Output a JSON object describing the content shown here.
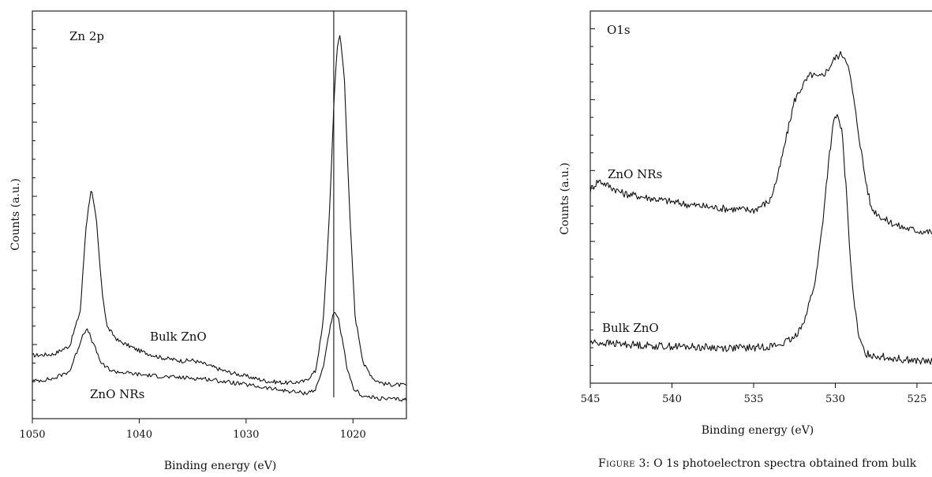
{
  "chart_data": [
    {
      "type": "line",
      "panel_label": "Zn 2p",
      "xlabel": "Binding energy (eV)",
      "ylabel": "Counts (a.u.)",
      "xlim": [
        1050,
        1015
      ],
      "x_reversed": true,
      "xticks": [
        1050,
        1040,
        1030,
        1020
      ],
      "ylim": [
        0,
        1.2
      ],
      "reference_line_x": 1021.8,
      "series": [
        {
          "name": "Bulk ZnO",
          "points": [
            [
              1050,
              0.186
            ],
            [
              1048,
              0.19
            ],
            [
              1046.5,
              0.215
            ],
            [
              1045.5,
              0.32
            ],
            [
              1045,
              0.56
            ],
            [
              1044.5,
              0.68
            ],
            [
              1044,
              0.58
            ],
            [
              1043.5,
              0.38
            ],
            [
              1043,
              0.27
            ],
            [
              1042,
              0.23
            ],
            [
              1040,
              0.2
            ],
            [
              1038,
              0.18
            ],
            [
              1036,
              0.17
            ],
            [
              1035,
              0.172
            ],
            [
              1034,
              0.162
            ],
            [
              1032,
              0.14
            ],
            [
              1030,
              0.125
            ],
            [
              1028,
              0.11
            ],
            [
              1026,
              0.105
            ],
            [
              1024.5,
              0.11
            ],
            [
              1023.5,
              0.14
            ],
            [
              1022.8,
              0.28
            ],
            [
              1022.2,
              0.6
            ],
            [
              1021.8,
              0.92
            ],
            [
              1021.5,
              1.09
            ],
            [
              1021.2,
              1.13
            ],
            [
              1020.8,
              1.0
            ],
            [
              1020.3,
              0.6
            ],
            [
              1019.8,
              0.3
            ],
            [
              1019,
              0.16
            ],
            [
              1018,
              0.115
            ],
            [
              1017,
              0.102
            ],
            [
              1015,
              0.098
            ]
          ]
        },
        {
          "name": "ZnO NRs",
          "points": [
            [
              1050,
              0.11
            ],
            [
              1048,
              0.118
            ],
            [
              1046.5,
              0.14
            ],
            [
              1045.8,
              0.2
            ],
            [
              1045.2,
              0.255
            ],
            [
              1044.8,
              0.26
            ],
            [
              1044.3,
              0.22
            ],
            [
              1043.5,
              0.16
            ],
            [
              1042.5,
              0.14
            ],
            [
              1040,
              0.13
            ],
            [
              1037,
              0.122
            ],
            [
              1034,
              0.118
            ],
            [
              1030,
              0.1
            ],
            [
              1027,
              0.085
            ],
            [
              1024.5,
              0.075
            ],
            [
              1023.5,
              0.085
            ],
            [
              1022.8,
              0.15
            ],
            [
              1022.2,
              0.26
            ],
            [
              1021.8,
              0.31
            ],
            [
              1021.4,
              0.3
            ],
            [
              1021,
              0.23
            ],
            [
              1020.5,
              0.14
            ],
            [
              1020,
              0.09
            ],
            [
              1019,
              0.065
            ],
            [
              1017,
              0.058
            ],
            [
              1015,
              0.056
            ]
          ]
        }
      ]
    },
    {
      "type": "line",
      "panel_label": "O1s",
      "xlabel": "Binding energy (eV)",
      "ylabel": "Counts (a.u.)",
      "xlim": [
        545,
        523.5
      ],
      "x_reversed": true,
      "xticks": [
        545,
        540,
        535,
        530,
        525
      ],
      "ylim": [
        0,
        1.0
      ],
      "series": [
        {
          "name": "ZnO NRs",
          "points": [
            [
              545,
              0.52
            ],
            [
              544.5,
              0.545
            ],
            [
              543,
              0.51
            ],
            [
              541,
              0.495
            ],
            [
              539,
              0.48
            ],
            [
              537,
              0.47
            ],
            [
              535,
              0.465
            ],
            [
              534,
              0.49
            ],
            [
              533.5,
              0.56
            ],
            [
              533,
              0.66
            ],
            [
              532.5,
              0.76
            ],
            [
              532,
              0.8
            ],
            [
              531.5,
              0.83
            ],
            [
              531,
              0.82
            ],
            [
              530.5,
              0.84
            ],
            [
              530,
              0.875
            ],
            [
              529.6,
              0.885
            ],
            [
              529.3,
              0.87
            ],
            [
              529,
              0.8
            ],
            [
              528.6,
              0.68
            ],
            [
              528.2,
              0.56
            ],
            [
              527.8,
              0.47
            ],
            [
              527,
              0.44
            ],
            [
              526,
              0.42
            ],
            [
              525,
              0.41
            ],
            [
              524,
              0.405
            ],
            [
              523.5,
              0.4
            ]
          ]
        },
        {
          "name": "Bulk ZnO",
          "points": [
            [
              545,
              0.11
            ],
            [
              543,
              0.105
            ],
            [
              541,
              0.1
            ],
            [
              539,
              0.098
            ],
            [
              537,
              0.095
            ],
            [
              535,
              0.095
            ],
            [
              533.5,
              0.102
            ],
            [
              532.5,
              0.12
            ],
            [
              531.8,
              0.18
            ],
            [
              531.2,
              0.28
            ],
            [
              530.8,
              0.42
            ],
            [
              530.4,
              0.6
            ],
            [
              530.1,
              0.7
            ],
            [
              529.9,
              0.72
            ],
            [
              529.6,
              0.68
            ],
            [
              529.3,
              0.5
            ],
            [
              529,
              0.28
            ],
            [
              528.6,
              0.13
            ],
            [
              528.2,
              0.08
            ],
            [
              527,
              0.07
            ],
            [
              525,
              0.06
            ],
            [
              523.5,
              0.055
            ]
          ]
        }
      ]
    }
  ],
  "figure_caption": {
    "label": "Figure 3:",
    "text": "O 1s photoelectron spectra obtained from bulk"
  }
}
